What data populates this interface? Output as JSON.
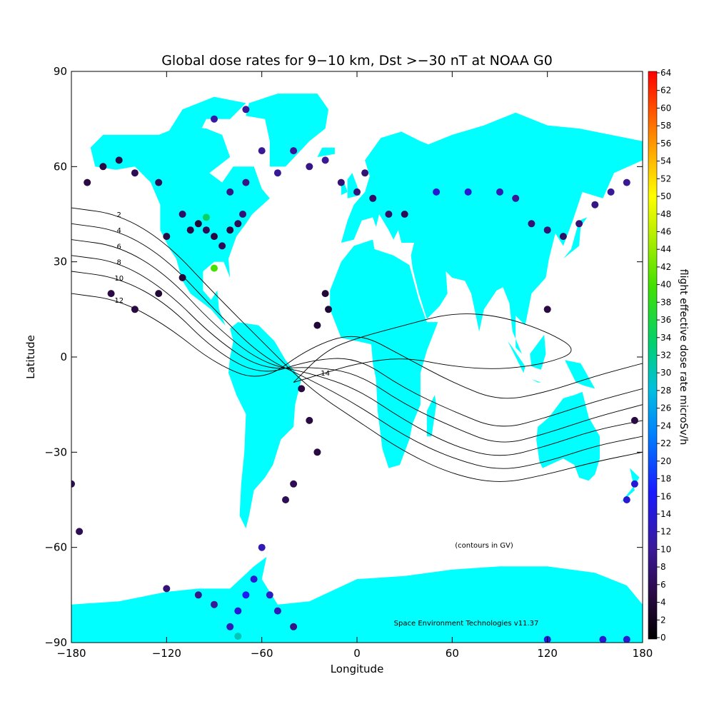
{
  "chart_data": {
    "type": "heatmap",
    "title": "Global dose rates for 9−10 km, Dst >−30 nT at NOAA G0",
    "xlabel": "Longitude",
    "ylabel": "Latitude",
    "xlim": [
      -180,
      180
    ],
    "ylim": [
      -90,
      90
    ],
    "xticks": [
      "−180",
      "−120",
      "−60",
      "0",
      "60",
      "120",
      "180"
    ],
    "xtick_values": [
      -180,
      -120,
      -60,
      0,
      60,
      120,
      180
    ],
    "yticks": [
      "90",
      "60",
      "30",
      "0",
      "−30",
      "−60",
      "−90"
    ],
    "ytick_values": [
      90,
      60,
      30,
      0,
      -30,
      -60,
      -90
    ],
    "colorbar": {
      "label": "flight effective dose rate microSv/h",
      "min": 0,
      "max": 64,
      "ticks": [
        "0",
        "2",
        "4",
        "6",
        "8",
        "10",
        "12",
        "14",
        "16",
        "18",
        "20",
        "22",
        "24",
        "26",
        "28",
        "30",
        "32",
        "34",
        "36",
        "38",
        "40",
        "42",
        "44",
        "46",
        "48",
        "50",
        "52",
        "54",
        "56",
        "58",
        "60",
        "62",
        "64"
      ]
    },
    "contour_note": "(contours in GV)",
    "credit": "Space Environment Technologies v11.37",
    "land_color": "#00ffff",
    "contours": [
      {
        "value": 2,
        "label": "2",
        "points": [
          [
            -180,
            47
          ],
          [
            -150,
            45
          ],
          [
            -120,
            36
          ],
          [
            -90,
            20
          ],
          [
            -60,
            5
          ],
          [
            -30,
            -10
          ],
          [
            0,
            -20
          ],
          [
            30,
            -30
          ],
          [
            60,
            -37
          ],
          [
            90,
            -40
          ],
          [
            120,
            -37
          ],
          [
            150,
            -33
          ],
          [
            180,
            -30
          ]
        ]
      },
      {
        "value": 4,
        "label": "4",
        "points": [
          [
            -180,
            42
          ],
          [
            -150,
            40
          ],
          [
            -120,
            31
          ],
          [
            -90,
            15
          ],
          [
            -60,
            0
          ],
          [
            -30,
            -7
          ],
          [
            0,
            -15
          ],
          [
            30,
            -25
          ],
          [
            60,
            -32
          ],
          [
            90,
            -36
          ],
          [
            120,
            -33
          ],
          [
            150,
            -28
          ],
          [
            180,
            -25
          ]
        ]
      },
      {
        "value": 6,
        "label": "6",
        "points": [
          [
            -180,
            37
          ],
          [
            -150,
            35
          ],
          [
            -120,
            26
          ],
          [
            -90,
            10
          ],
          [
            -60,
            -2
          ],
          [
            -30,
            -5
          ],
          [
            0,
            -10
          ],
          [
            30,
            -20
          ],
          [
            60,
            -28
          ],
          [
            90,
            -32
          ],
          [
            120,
            -28
          ],
          [
            150,
            -23
          ],
          [
            180,
            -20
          ]
        ]
      },
      {
        "value": 8,
        "label": "8",
        "points": [
          [
            -180,
            32
          ],
          [
            -150,
            30
          ],
          [
            -120,
            21
          ],
          [
            -90,
            6
          ],
          [
            -60,
            -4
          ],
          [
            -30,
            -3
          ],
          [
            0,
            -5
          ],
          [
            30,
            -15
          ],
          [
            60,
            -22
          ],
          [
            90,
            -28
          ],
          [
            120,
            -24
          ],
          [
            150,
            -19
          ],
          [
            180,
            -15
          ]
        ]
      },
      {
        "value": 10,
        "label": "10",
        "points": [
          [
            -180,
            27
          ],
          [
            -150,
            25
          ],
          [
            -120,
            17
          ],
          [
            -90,
            2
          ],
          [
            -60,
            -6
          ],
          [
            -30,
            -1
          ],
          [
            0,
            0
          ],
          [
            30,
            -10
          ],
          [
            60,
            -17
          ],
          [
            90,
            -23
          ],
          [
            120,
            -19
          ],
          [
            150,
            -14
          ],
          [
            180,
            -10
          ]
        ]
      },
      {
        "value": 12,
        "label": "12",
        "points": [
          [
            -180,
            20
          ],
          [
            -150,
            18
          ],
          [
            -120,
            10
          ],
          [
            -90,
            -2
          ],
          [
            -60,
            -8
          ],
          [
            -30,
            3
          ],
          [
            0,
            8
          ],
          [
            30,
            0
          ],
          [
            60,
            -8
          ],
          [
            90,
            -14
          ],
          [
            120,
            -11
          ],
          [
            150,
            -6
          ],
          [
            180,
            -2
          ]
        ]
      },
      {
        "value": 14,
        "label": "14",
        "points": [
          [
            -40,
            -8
          ],
          [
            -20,
            -5
          ],
          [
            0,
            -2
          ],
          [
            30,
            0
          ],
          [
            60,
            -3
          ],
          [
            90,
            -4
          ],
          [
            120,
            -2
          ],
          [
            140,
            2
          ],
          [
            120,
            8
          ],
          [
            90,
            13
          ],
          [
            60,
            14
          ],
          [
            30,
            10
          ],
          [
            0,
            6
          ],
          [
            -20,
            2
          ],
          [
            -40,
            -8
          ]
        ]
      }
    ],
    "points": [
      {
        "lon": -100,
        "lat": 42,
        "dose": 4
      },
      {
        "lon": -95,
        "lat": 40,
        "dose": 6
      },
      {
        "lon": -90,
        "lat": 38,
        "dose": 5
      },
      {
        "lon": -85,
        "lat": 35,
        "dose": 6
      },
      {
        "lon": -80,
        "lat": 40,
        "dose": 5
      },
      {
        "lon": -110,
        "lat": 45,
        "dose": 7
      },
      {
        "lon": -120,
        "lat": 38,
        "dose": 5
      },
      {
        "lon": -75,
        "lat": 42,
        "dose": 6
      },
      {
        "lon": -72,
        "lat": 45,
        "dose": 8
      },
      {
        "lon": -90,
        "lat": 28,
        "dose": 40
      },
      {
        "lon": -95,
        "lat": 44,
        "dose": 34
      },
      {
        "lon": -105,
        "lat": 40,
        "dose": 5
      },
      {
        "lon": -125,
        "lat": 55,
        "dose": 6
      },
      {
        "lon": -140,
        "lat": 58,
        "dose": 6
      },
      {
        "lon": -150,
        "lat": 62,
        "dose": 5
      },
      {
        "lon": -160,
        "lat": 60,
        "dose": 5
      },
      {
        "lon": -170,
        "lat": 55,
        "dose": 5
      },
      {
        "lon": -155,
        "lat": 20,
        "dose": 5
      },
      {
        "lon": -140,
        "lat": 15,
        "dose": 5
      },
      {
        "lon": -125,
        "lat": 20,
        "dose": 4
      },
      {
        "lon": -110,
        "lat": 25,
        "dose": 4
      },
      {
        "lon": -60,
        "lat": 65,
        "dose": 10
      },
      {
        "lon": -40,
        "lat": 65,
        "dose": 10
      },
      {
        "lon": -20,
        "lat": 62,
        "dose": 10
      },
      {
        "lon": -30,
        "lat": 60,
        "dose": 9
      },
      {
        "lon": -50,
        "lat": 58,
        "dose": 10
      },
      {
        "lon": -70,
        "lat": 55,
        "dose": 9
      },
      {
        "lon": -80,
        "lat": 52,
        "dose": 9
      },
      {
        "lon": -90,
        "lat": 75,
        "dose": 11
      },
      {
        "lon": -70,
        "lat": 78,
        "dose": 10
      },
      {
        "lon": -20,
        "lat": 20,
        "dose": 4
      },
      {
        "lon": -18,
        "lat": 15,
        "dose": 4
      },
      {
        "lon": -25,
        "lat": 10,
        "dose": 4
      },
      {
        "lon": -35,
        "lat": -10,
        "dose": 5
      },
      {
        "lon": -30,
        "lat": -20,
        "dose": 5
      },
      {
        "lon": -25,
        "lat": -30,
        "dose": 5
      },
      {
        "lon": -40,
        "lat": -40,
        "dose": 6
      },
      {
        "lon": -45,
        "lat": -45,
        "dose": 6
      },
      {
        "lon": 0,
        "lat": 52,
        "dose": 8
      },
      {
        "lon": 10,
        "lat": 50,
        "dose": 7
      },
      {
        "lon": 20,
        "lat": 45,
        "dose": 7
      },
      {
        "lon": 30,
        "lat": 45,
        "dose": 6
      },
      {
        "lon": 5,
        "lat": 58,
        "dose": 8
      },
      {
        "lon": -10,
        "lat": 55,
        "dose": 8
      },
      {
        "lon": 50,
        "lat": 52,
        "dose": 14
      },
      {
        "lon": 70,
        "lat": 52,
        "dose": 14
      },
      {
        "lon": 90,
        "lat": 52,
        "dose": 12
      },
      {
        "lon": 100,
        "lat": 50,
        "dose": 10
      },
      {
        "lon": 110,
        "lat": 42,
        "dose": 8
      },
      {
        "lon": 120,
        "lat": 40,
        "dose": 8
      },
      {
        "lon": 130,
        "lat": 38,
        "dose": 7
      },
      {
        "lon": 140,
        "lat": 42,
        "dose": 8
      },
      {
        "lon": 150,
        "lat": 48,
        "dose": 9
      },
      {
        "lon": 160,
        "lat": 52,
        "dose": 10
      },
      {
        "lon": 170,
        "lat": 55,
        "dose": 10
      },
      {
        "lon": 120,
        "lat": 15,
        "dose": 5
      },
      {
        "lon": 175,
        "lat": -20,
        "dose": 5
      },
      {
        "lon": 170,
        "lat": -45,
        "dose": 14
      },
      {
        "lon": 175,
        "lat": -40,
        "dose": 14
      },
      {
        "lon": -180,
        "lat": -40,
        "dose": 6
      },
      {
        "lon": -175,
        "lat": -55,
        "dose": 6
      },
      {
        "lon": -60,
        "lat": -60,
        "dose": 12
      },
      {
        "lon": -65,
        "lat": -70,
        "dose": 14
      },
      {
        "lon": -70,
        "lat": -75,
        "dose": 16
      },
      {
        "lon": -75,
        "lat": -80,
        "dose": 14
      },
      {
        "lon": -80,
        "lat": -85,
        "dose": 12
      },
      {
        "lon": -55,
        "lat": -75,
        "dose": 13
      },
      {
        "lon": -50,
        "lat": -80,
        "dose": 12
      },
      {
        "lon": -90,
        "lat": -78,
        "dose": 10
      },
      {
        "lon": -100,
        "lat": -75,
        "dose": 9
      },
      {
        "lon": -120,
        "lat": -73,
        "dose": 8
      },
      {
        "lon": -75,
        "lat": -88,
        "dose": 30
      },
      {
        "lon": -40,
        "lat": -85,
        "dose": 9
      },
      {
        "lon": 120,
        "lat": -89,
        "dose": 14
      },
      {
        "lon": 155,
        "lat": -89,
        "dose": 14
      },
      {
        "lon": 170,
        "lat": -89,
        "dose": 14
      }
    ]
  }
}
